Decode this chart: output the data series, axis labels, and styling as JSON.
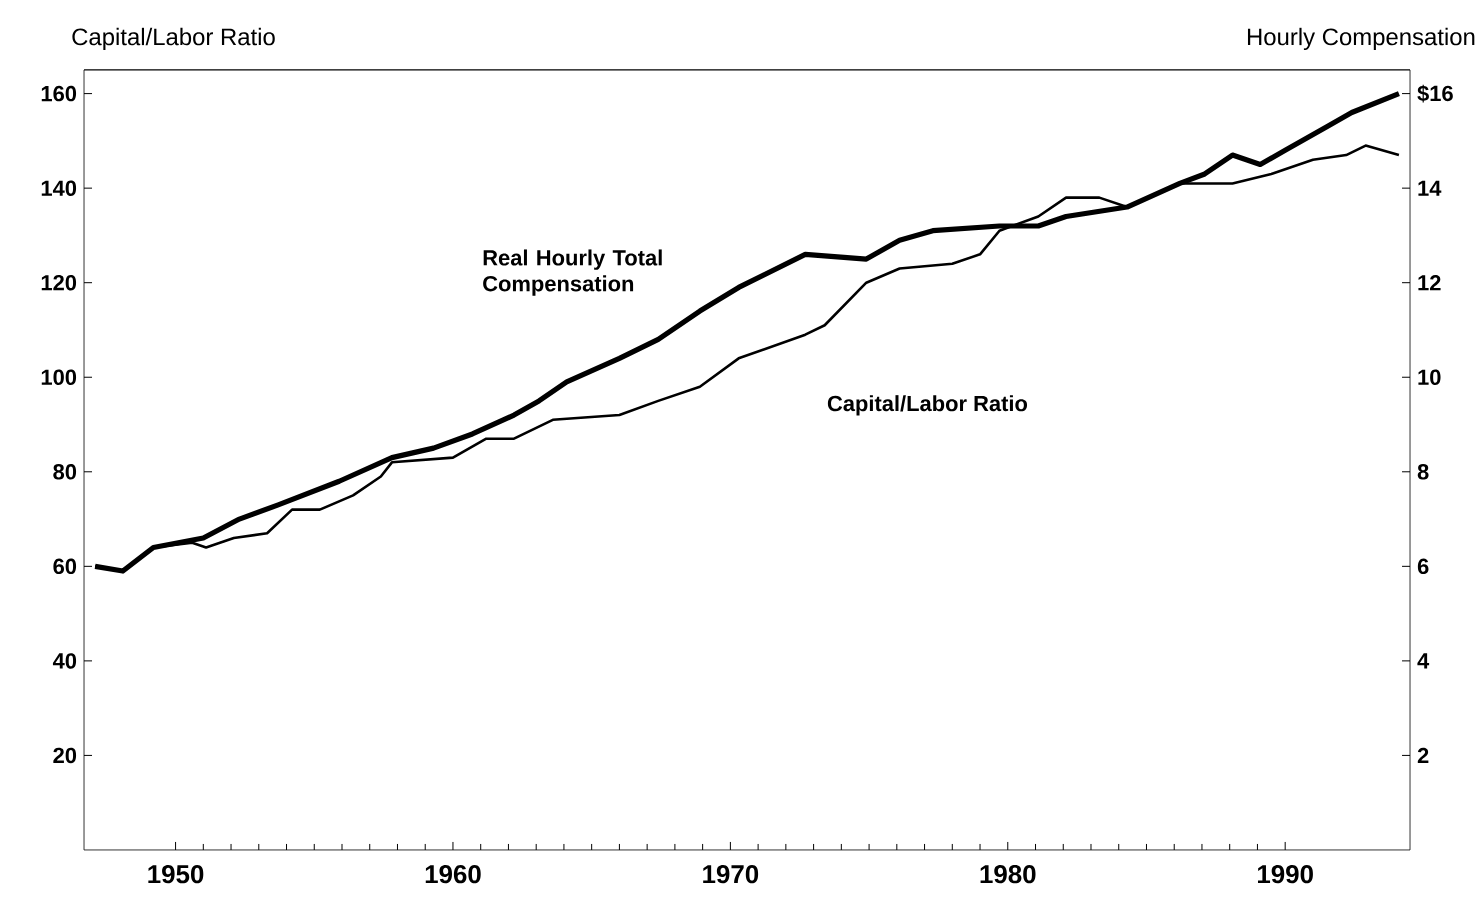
{
  "chart_data": {
    "type": "line",
    "ylabel": "Capital/Labor Ratio",
    "y2label": "Hourly Compensation",
    "xlim": [
      1946.7,
      1994.5
    ],
    "xticks": [
      1950,
      1960,
      1970,
      1980,
      1990
    ],
    "ylim": [
      0,
      165
    ],
    "yticks": [
      20,
      40,
      60,
      80,
      100,
      120,
      140,
      160
    ],
    "y2lim": [
      0,
      16.5
    ],
    "y2ticks": [
      2,
      4,
      6,
      8,
      10,
      12,
      {
        "value": 14,
        "label": "14"
      },
      {
        "value": 16,
        "label": "$16"
      }
    ],
    "grid": false,
    "legend": false,
    "marker": "none",
    "line_style": "solid",
    "series": [
      {
        "name": "Real Hourly Total Compensation",
        "color": "#000000",
        "axis": "y2",
        "x": [
          1947.1,
          1948.1,
          1949.2,
          1951.0,
          1952.3,
          1953.7,
          1955.9,
          1957.8,
          1959.3,
          1960.7,
          1962.2,
          1963.1,
          1964.1,
          1966.0,
          1967.4,
          1968.9,
          1970.3,
          1972.7,
          1974.9,
          1976.1,
          1977.3,
          1979.7,
          1981.1,
          1982.1,
          1984.3,
          1986.2,
          1987.1,
          1988.1,
          1989.1,
          1990.0,
          1991.5,
          1992.4,
          1994.1
        ],
        "values": [
          6.0,
          5.9,
          6.4,
          6.6,
          7.0,
          7.3,
          7.8,
          8.3,
          8.5,
          8.8,
          9.2,
          9.5,
          9.9,
          10.4,
          10.8,
          11.4,
          11.9,
          12.6,
          12.5,
          12.9,
          13.1,
          13.2,
          13.2,
          13.4,
          13.6,
          14.1,
          14.3,
          14.7,
          14.5,
          14.8,
          15.3,
          15.6,
          16.0
        ]
      },
      {
        "name": "Capital/Labor Ratio",
        "color": "#000000",
        "x": [
          1947.1,
          1948.1,
          1949.2,
          1950.6,
          1951.1,
          1952.1,
          1953.3,
          1954.2,
          1955.2,
          1956.4,
          1957.4,
          1957.8,
          1960.0,
          1961.2,
          1962.2,
          1963.6,
          1966.0,
          1967.4,
          1968.9,
          1970.3,
          1972.7,
          1973.4,
          1974.9,
          1976.1,
          1978.0,
          1979.0,
          1979.7,
          1981.1,
          1982.1,
          1983.3,
          1984.3,
          1986.2,
          1988.1,
          1989.5,
          1991.0,
          1992.2,
          1992.9,
          1994.1
        ],
        "values": [
          60,
          59,
          64,
          65,
          64,
          66,
          67,
          72,
          72,
          75,
          79,
          82,
          83,
          87,
          87,
          91,
          92,
          95,
          98,
          104,
          109,
          111,
          120,
          123,
          124,
          126,
          131,
          134,
          138,
          138,
          136,
          141,
          141,
          143,
          146,
          147,
          149,
          147
        ]
      }
    ]
  }
}
